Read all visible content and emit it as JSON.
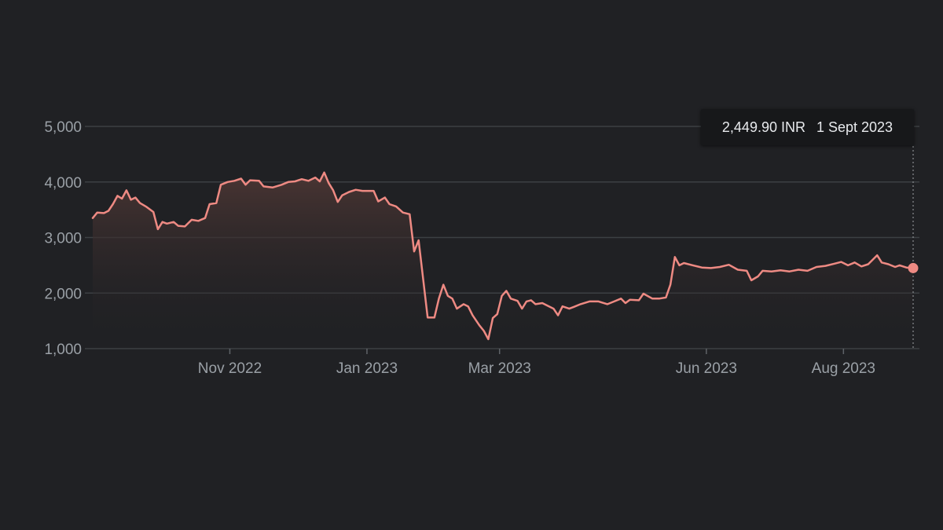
{
  "colors": {
    "background": "#202124",
    "line": "#ee8a83",
    "area_top": "#4a3533",
    "gridline": "#3c4043",
    "axis_text": "#9aa0a6",
    "tooltip_bg": "#17181a",
    "tooltip_text": "#e8eaed"
  },
  "tooltip": {
    "price": "2,449.90 INR",
    "date": "1 Sept 2023"
  },
  "chart_data": {
    "type": "area",
    "title": "",
    "xlabel": "",
    "ylabel": "",
    "currency": "INR",
    "ylim": [
      1000,
      5000
    ],
    "xlim": [
      "2022-09-01",
      "2023-09-01"
    ],
    "grid": true,
    "legend": "none",
    "y_ticks": [
      1000,
      2000,
      3000,
      4000,
      5000
    ],
    "y_tick_labels": [
      "1,000",
      "2,000",
      "3,000",
      "4,000",
      "5,000"
    ],
    "x_ticks": [
      "2022-11-01",
      "2023-01-01",
      "2023-03-01",
      "2023-06-01",
      "2023-08-01"
    ],
    "x_tick_labels": [
      "Nov 2022",
      "Jan 2023",
      "Mar 2023",
      "Jun 2023",
      "Aug 2023"
    ],
    "highlight": {
      "x": "2023-09-01",
      "y": 2449.9
    },
    "series": [
      {
        "points": [
          [
            "2022-09-01",
            3350
          ],
          [
            "2022-09-03",
            3450
          ],
          [
            "2022-09-06",
            3440
          ],
          [
            "2022-09-08",
            3480
          ],
          [
            "2022-09-10",
            3600
          ],
          [
            "2022-09-12",
            3750
          ],
          [
            "2022-09-14",
            3700
          ],
          [
            "2022-09-16",
            3850
          ],
          [
            "2022-09-18",
            3680
          ],
          [
            "2022-09-20",
            3720
          ],
          [
            "2022-09-22",
            3620
          ],
          [
            "2022-09-25",
            3550
          ],
          [
            "2022-09-28",
            3460
          ],
          [
            "2022-09-30",
            3150
          ],
          [
            "2022-10-02",
            3280
          ],
          [
            "2022-10-04",
            3250
          ],
          [
            "2022-10-07",
            3280
          ],
          [
            "2022-10-09",
            3210
          ],
          [
            "2022-10-12",
            3200
          ],
          [
            "2022-10-15",
            3320
          ],
          [
            "2022-10-18",
            3300
          ],
          [
            "2022-10-21",
            3350
          ],
          [
            "2022-10-23",
            3600
          ],
          [
            "2022-10-26",
            3620
          ],
          [
            "2022-10-28",
            3950
          ],
          [
            "2022-10-31",
            4000
          ],
          [
            "2022-11-03",
            4020
          ],
          [
            "2022-11-06",
            4060
          ],
          [
            "2022-11-08",
            3950
          ],
          [
            "2022-11-10",
            4030
          ],
          [
            "2022-11-14",
            4020
          ],
          [
            "2022-11-16",
            3920
          ],
          [
            "2022-11-20",
            3900
          ],
          [
            "2022-11-24",
            3950
          ],
          [
            "2022-11-27",
            4000
          ],
          [
            "2022-11-30",
            4010
          ],
          [
            "2022-12-03",
            4050
          ],
          [
            "2022-12-06",
            4020
          ],
          [
            "2022-12-09",
            4080
          ],
          [
            "2022-12-11",
            4010
          ],
          [
            "2022-12-13",
            4170
          ],
          [
            "2022-12-15",
            3980
          ],
          [
            "2022-12-17",
            3850
          ],
          [
            "2022-12-19",
            3640
          ],
          [
            "2022-12-21",
            3760
          ],
          [
            "2022-12-24",
            3820
          ],
          [
            "2022-12-27",
            3860
          ],
          [
            "2022-12-30",
            3840
          ],
          [
            "2023-01-04",
            3840
          ],
          [
            "2023-01-06",
            3650
          ],
          [
            "2023-01-09",
            3720
          ],
          [
            "2023-01-11",
            3600
          ],
          [
            "2023-01-14",
            3560
          ],
          [
            "2023-01-17",
            3450
          ],
          [
            "2023-01-20",
            3420
          ],
          [
            "2023-01-22",
            2750
          ],
          [
            "2023-01-24",
            2950
          ],
          [
            "2023-01-26",
            2250
          ],
          [
            "2023-01-28",
            1560
          ],
          [
            "2023-01-31",
            1560
          ],
          [
            "2023-02-02",
            1900
          ],
          [
            "2023-02-04",
            2150
          ],
          [
            "2023-02-06",
            1950
          ],
          [
            "2023-02-08",
            1900
          ],
          [
            "2023-02-10",
            1720
          ],
          [
            "2023-02-13",
            1800
          ],
          [
            "2023-02-15",
            1760
          ],
          [
            "2023-02-17",
            1600
          ],
          [
            "2023-02-20",
            1420
          ],
          [
            "2023-02-22",
            1320
          ],
          [
            "2023-02-24",
            1170
          ],
          [
            "2023-02-26",
            1550
          ],
          [
            "2023-02-28",
            1620
          ],
          [
            "2023-03-02",
            1950
          ],
          [
            "2023-03-04",
            2040
          ],
          [
            "2023-03-06",
            1900
          ],
          [
            "2023-03-09",
            1860
          ],
          [
            "2023-03-11",
            1720
          ],
          [
            "2023-03-13",
            1850
          ],
          [
            "2023-03-15",
            1870
          ],
          [
            "2023-03-17",
            1800
          ],
          [
            "2023-03-20",
            1820
          ],
          [
            "2023-03-23",
            1760
          ],
          [
            "2023-03-25",
            1720
          ],
          [
            "2023-03-27",
            1600
          ],
          [
            "2023-03-29",
            1760
          ],
          [
            "2023-04-01",
            1720
          ],
          [
            "2023-04-03",
            1750
          ],
          [
            "2023-04-06",
            1800
          ],
          [
            "2023-04-10",
            1850
          ],
          [
            "2023-04-14",
            1850
          ],
          [
            "2023-04-18",
            1800
          ],
          [
            "2023-04-21",
            1850
          ],
          [
            "2023-04-24",
            1900
          ],
          [
            "2023-04-26",
            1820
          ],
          [
            "2023-04-28",
            1880
          ],
          [
            "2023-05-02",
            1870
          ],
          [
            "2023-05-04",
            1990
          ],
          [
            "2023-05-08",
            1900
          ],
          [
            "2023-05-11",
            1900
          ],
          [
            "2023-05-14",
            1920
          ],
          [
            "2023-05-16",
            2150
          ],
          [
            "2023-05-18",
            2650
          ],
          [
            "2023-05-20",
            2500
          ],
          [
            "2023-05-22",
            2540
          ],
          [
            "2023-05-26",
            2500
          ],
          [
            "2023-05-30",
            2460
          ],
          [
            "2023-06-03",
            2450
          ],
          [
            "2023-06-07",
            2470
          ],
          [
            "2023-06-11",
            2510
          ],
          [
            "2023-06-15",
            2420
          ],
          [
            "2023-06-19",
            2400
          ],
          [
            "2023-06-21",
            2230
          ],
          [
            "2023-06-24",
            2300
          ],
          [
            "2023-06-26",
            2400
          ],
          [
            "2023-06-30",
            2390
          ],
          [
            "2023-07-04",
            2410
          ],
          [
            "2023-07-08",
            2390
          ],
          [
            "2023-07-12",
            2420
          ],
          [
            "2023-07-16",
            2400
          ],
          [
            "2023-07-20",
            2470
          ],
          [
            "2023-07-24",
            2490
          ],
          [
            "2023-07-28",
            2530
          ],
          [
            "2023-07-31",
            2560
          ],
          [
            "2023-08-03",
            2500
          ],
          [
            "2023-08-06",
            2550
          ],
          [
            "2023-08-09",
            2480
          ],
          [
            "2023-08-12",
            2520
          ],
          [
            "2023-08-16",
            2680
          ],
          [
            "2023-08-18",
            2550
          ],
          [
            "2023-08-21",
            2520
          ],
          [
            "2023-08-24",
            2470
          ],
          [
            "2023-08-26",
            2500
          ],
          [
            "2023-08-29",
            2460
          ],
          [
            "2023-09-01",
            2449.9
          ]
        ]
      }
    ]
  }
}
